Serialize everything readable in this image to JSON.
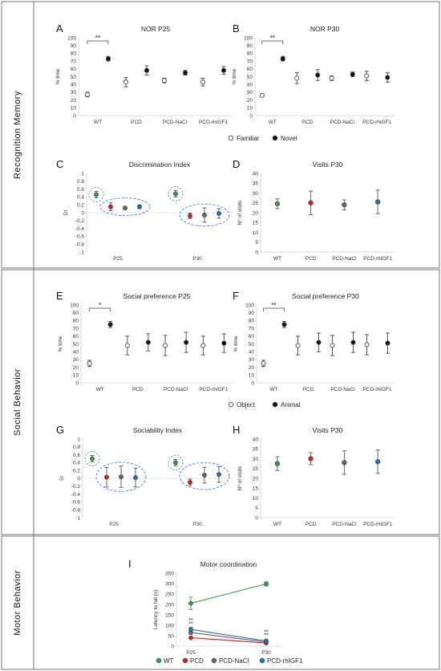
{
  "sections": [
    {
      "label": "Recognition Memory"
    },
    {
      "label": "Social Behavior"
    },
    {
      "label": "Motor Behavior"
    }
  ],
  "legend_nor": {
    "open_label": "Familiar",
    "filled_label": "Novel"
  },
  "legend_social": {
    "open_label": "Object",
    "filled_label": "Animal"
  },
  "legend_motor": [
    {
      "label": "WT",
      "color": "#3a9a55"
    },
    {
      "label": "PCD",
      "color": "#cc2222"
    },
    {
      "label": "PCD-NaCl",
      "color": "#666666"
    },
    {
      "label": "PCD-rhIGF1",
      "color": "#2a6fb0"
    }
  ],
  "chart_data": [
    {
      "panel": "A",
      "type": "scatter",
      "title": "NOR P25",
      "ylabel": "% time",
      "ylim": [
        0,
        100
      ],
      "yticks": [
        0,
        10,
        20,
        30,
        40,
        50,
        60,
        70,
        80,
        90,
        100
      ],
      "categories": [
        "WT",
        "PCD",
        "PCD-NaCl",
        "PCD-rhIGF1"
      ],
      "series": [
        {
          "name": "Familiar",
          "style": "open",
          "values": [
            27,
            43,
            45,
            43
          ],
          "errors": [
            3,
            6,
            3,
            5
          ]
        },
        {
          "name": "Novel",
          "style": "filled",
          "values": [
            73,
            58,
            55,
            58
          ],
          "errors": [
            3,
            6,
            3,
            5
          ]
        }
      ],
      "significance": [
        {
          "category": "WT",
          "label": "**"
        }
      ]
    },
    {
      "panel": "B",
      "type": "scatter",
      "title": "NOR P30",
      "ylabel": "% time",
      "ylim": [
        0,
        100
      ],
      "yticks": [
        0,
        10,
        20,
        30,
        40,
        50,
        60,
        70,
        80,
        90,
        100
      ],
      "categories": [
        "WT",
        "PCD",
        "PCD-NaCl",
        "PCD-rhIGF1"
      ],
      "series": [
        {
          "name": "Familiar",
          "style": "open",
          "values": [
            26,
            48,
            48,
            51
          ],
          "errors": [
            2,
            7,
            3,
            6
          ]
        },
        {
          "name": "Novel",
          "style": "filled",
          "values": [
            73,
            52,
            53,
            49
          ],
          "errors": [
            3,
            7,
            3,
            6
          ]
        }
      ],
      "significance": [
        {
          "category": "WT",
          "label": "**"
        }
      ]
    },
    {
      "panel": "C",
      "type": "scatter",
      "title": "Discrimination Index",
      "ylabel": "DI",
      "ylim": [
        -1,
        1
      ],
      "yticks": [
        -1,
        -0.8,
        -0.6,
        -0.4,
        -0.2,
        0,
        0.2,
        0.4,
        0.6,
        0.8,
        1
      ],
      "group_labels": [
        "P25",
        "P30"
      ],
      "points": [
        {
          "group": "P25",
          "group_name": "WT",
          "value": 0.46,
          "error": 0.08
        },
        {
          "group": "P25",
          "group_name": "PCD",
          "value": 0.15,
          "error": 0.1
        },
        {
          "group": "P25",
          "group_name": "PCD-NaCl",
          "value": 0.12,
          "error": 0.04
        },
        {
          "group": "P25",
          "group_name": "PCD-rhIGF1",
          "value": 0.15,
          "error": 0.05
        },
        {
          "group": "P30",
          "group_name": "WT",
          "value": 0.48,
          "error": 0.08
        },
        {
          "group": "P30",
          "group_name": "PCD",
          "value": -0.08,
          "error": 0.07
        },
        {
          "group": "P30",
          "group_name": "PCD-NaCl",
          "value": -0.06,
          "error": 0.18
        },
        {
          "group": "P30",
          "group_name": "PCD-rhIGF1",
          "value": -0.02,
          "error": 0.12
        }
      ]
    },
    {
      "panel": "D",
      "type": "scatter",
      "title": "Visits P30",
      "ylabel": "Nº of visits",
      "ylim": [
        0,
        40
      ],
      "yticks": [
        0,
        5,
        10,
        15,
        20,
        25,
        30,
        35,
        40
      ],
      "categories": [
        "WT",
        "PCD",
        "PCD-NaCl",
        "PCD-rhIGF1"
      ],
      "series": [
        {
          "values": [
            24.5,
            25,
            24,
            25.5
          ],
          "errors": [
            2.5,
            6,
            2.5,
            6
          ]
        }
      ]
    },
    {
      "panel": "E",
      "type": "scatter",
      "title": "Social preference P25",
      "ylabel": "% time",
      "ylim": [
        0,
        100
      ],
      "yticks": [
        0,
        10,
        20,
        30,
        40,
        50,
        60,
        70,
        80,
        90,
        100
      ],
      "categories": [
        "WT",
        "PCD",
        "PCD-NaCl",
        "PCD-rhIGF1"
      ],
      "series": [
        {
          "name": "Object",
          "style": "open",
          "values": [
            25,
            48,
            48,
            48
          ],
          "errors": [
            4,
            12,
            13,
            12
          ]
        },
        {
          "name": "Animal",
          "style": "filled",
          "values": [
            75,
            52,
            52,
            51
          ],
          "errors": [
            4,
            11,
            13,
            12
          ]
        }
      ],
      "significance": [
        {
          "category": "WT",
          "label": "*"
        }
      ]
    },
    {
      "panel": "F",
      "type": "scatter",
      "title": "Social preference P30",
      "ylabel": "% time",
      "ylim": [
        0,
        100
      ],
      "yticks": [
        0,
        10,
        20,
        30,
        40,
        50,
        60,
        70,
        80,
        90,
        100
      ],
      "categories": [
        "WT",
        "PCD",
        "PCD-NaCl",
        "PCD-rhIGF1"
      ],
      "series": [
        {
          "name": "Object",
          "style": "open",
          "values": [
            25,
            48,
            48,
            49
          ],
          "errors": [
            4,
            12,
            13,
            13
          ]
        },
        {
          "name": "Animal",
          "style": "filled",
          "values": [
            75,
            52,
            52,
            51
          ],
          "errors": [
            4,
            12,
            13,
            13
          ]
        }
      ],
      "significance": [
        {
          "category": "WT",
          "label": "**"
        }
      ]
    },
    {
      "panel": "G",
      "type": "scatter",
      "title": "Sociability Index",
      "ylabel": "SI",
      "ylim": [
        -1,
        1
      ],
      "yticks": [
        -1,
        -0.8,
        -0.6,
        -0.4,
        -0.2,
        0,
        0.2,
        0.4,
        0.6,
        0.8,
        1
      ],
      "group_labels": [
        "P25",
        "P30"
      ],
      "points": [
        {
          "group": "P25",
          "group_name": "WT",
          "value": 0.5,
          "error": 0.08
        },
        {
          "group": "P25",
          "group_name": "PCD",
          "value": 0.03,
          "error": 0.25
        },
        {
          "group": "P25",
          "group_name": "PCD-NaCl",
          "value": 0.04,
          "error": 0.27
        },
        {
          "group": "P25",
          "group_name": "PCD-rhIGF1",
          "value": 0.02,
          "error": 0.24
        },
        {
          "group": "P30",
          "group_name": "WT",
          "value": 0.4,
          "error": 0.08
        },
        {
          "group": "P30",
          "group_name": "PCD",
          "value": -0.1,
          "error": 0.08
        },
        {
          "group": "P30",
          "group_name": "PCD-NaCl",
          "value": 0.08,
          "error": 0.2
        },
        {
          "group": "P30",
          "group_name": "PCD-rhIGF1",
          "value": 0.1,
          "error": 0.2
        }
      ]
    },
    {
      "panel": "H",
      "type": "scatter",
      "title": "Visits P30",
      "ylabel": "Nº of visits",
      "ylim": [
        0,
        40
      ],
      "yticks": [
        0,
        5,
        10,
        15,
        20,
        25,
        30,
        35,
        40
      ],
      "categories": [
        "WT",
        "PCD",
        "PCD-NaCl",
        "PCD-rhIGF1"
      ],
      "series": [
        {
          "values": [
            27.5,
            30,
            28,
            28.5
          ],
          "errors": [
            3.5,
            3,
            6,
            6
          ]
        }
      ]
    },
    {
      "panel": "I",
      "type": "line",
      "title": "Motor coordination",
      "ylabel": "Latency to fall (s)",
      "ylim": [
        0,
        350
      ],
      "yticks": [
        0,
        50,
        100,
        150,
        200,
        250,
        300,
        350
      ],
      "x": [
        "P25",
        "P30"
      ],
      "series": [
        {
          "name": "WT",
          "color": "#3a9a55",
          "values": [
            205,
            298
          ],
          "errors": [
            30,
            10
          ]
        },
        {
          "name": "PCD",
          "color": "#cc2222",
          "values": [
            40,
            15
          ],
          "errors": [
            5,
            4
          ]
        },
        {
          "name": "PCD-NaCl",
          "color": "#666666",
          "values": [
            65,
            20
          ],
          "errors": [
            8,
            5
          ]
        },
        {
          "name": "PCD-rhIGF1",
          "color": "#2a6fb0",
          "values": [
            80,
            25
          ],
          "errors": [
            10,
            5
          ]
        }
      ],
      "annotations": [
        "**",
        "**",
        "**",
        "**"
      ]
    }
  ]
}
